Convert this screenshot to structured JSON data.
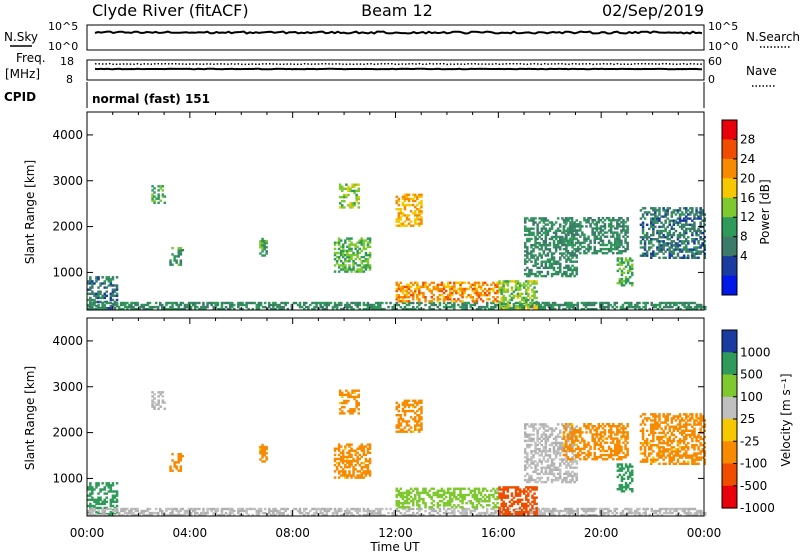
{
  "header": {
    "title": "Clyde River (fitACF)",
    "beam": "Beam 12",
    "date": "02/Sep/2019"
  },
  "strip": {
    "nsky_label": "N.Sky",
    "nsearch_label": "N.Search",
    "freq_label_1": "Freq.",
    "freq_label_2": "[MHz]",
    "nave_label": "Nave",
    "cpid_label": "CPID",
    "cpid_value": "normal (fast) 151",
    "left_ticks_top": [
      "10^5",
      "10^0"
    ],
    "right_ticks_top": [
      "10^5",
      "10^0"
    ],
    "left_ticks_freq": [
      "18",
      "8"
    ],
    "right_ticks_nave": [
      "60",
      "0"
    ]
  },
  "power_colorbar": {
    "label": "Power [dB]",
    "ticks": [
      "28",
      "24",
      "20",
      "16",
      "12",
      "8",
      "4"
    ],
    "colors": [
      "#e8000b",
      "#f04d00",
      "#f88a00",
      "#f5c800",
      "#7ec830",
      "#2f9a5a",
      "#3c7a6a",
      "#1a3ca0",
      "#0018e8"
    ]
  },
  "velocity_colorbar": {
    "label": "Velocity [m s⁻¹]",
    "ticks": [
      "1000",
      "500",
      "100",
      "25",
      "-25",
      "-100",
      "-500",
      "-1000"
    ],
    "colors": [
      "#1a3ca0",
      "#2f9a5a",
      "#7ec830",
      "#c0c0c0",
      "#f5c800",
      "#f88a00",
      "#f04d00",
      "#e8000b"
    ]
  },
  "colors": {
    "ground_scatter": "#b0b0b0"
  },
  "chart_data": {
    "type": "heatmap",
    "panels": [
      "power",
      "velocity"
    ],
    "ylabel": "Slant Range [km]",
    "xlabel": "Time UT",
    "x_ticks": [
      "00:00",
      "04:00",
      "08:00",
      "12:00",
      "16:00",
      "20:00",
      "00:00"
    ],
    "y_ticks": [
      1000,
      2000,
      3000,
      4000
    ],
    "ylim": [
      180,
      4500
    ],
    "xlim_hours": [
      0,
      24
    ],
    "nsky_trace_level": 0.7,
    "freq_trace_level": 0.55,
    "nave_trace_level": 0.8,
    "echo_regions": [
      {
        "t0": 0.0,
        "t1": 1.2,
        "r0": 200,
        "r1": 900,
        "power": 8,
        "velocity": 500
      },
      {
        "t0": 0.0,
        "t1": 24.0,
        "r0": 180,
        "r1": 330,
        "power": 10,
        "velocity": 25
      },
      {
        "t0": 2.5,
        "t1": 3.0,
        "r0": 2500,
        "r1": 2900,
        "power": 14,
        "velocity": 25
      },
      {
        "t0": 3.2,
        "t1": 3.7,
        "r0": 1150,
        "r1": 1550,
        "power": 12,
        "velocity": -100
      },
      {
        "t0": 6.7,
        "t1": 7.0,
        "r0": 1350,
        "r1": 1750,
        "power": 12,
        "velocity": -100
      },
      {
        "t0": 9.6,
        "t1": 11.0,
        "r0": 1000,
        "r1": 1750,
        "power": 14,
        "velocity": -100
      },
      {
        "t0": 9.8,
        "t1": 10.6,
        "r0": 2400,
        "r1": 2900,
        "power": 16,
        "velocity": -100
      },
      {
        "t0": 12.0,
        "t1": 13.0,
        "r0": 2000,
        "r1": 2700,
        "power": 22,
        "velocity": -100
      },
      {
        "t0": 12.0,
        "t1": 16.0,
        "r0": 350,
        "r1": 800,
        "power": 24,
        "velocity": 100
      },
      {
        "t0": 16.0,
        "t1": 17.5,
        "r0": 200,
        "r1": 800,
        "power": 16,
        "velocity": -500
      },
      {
        "t0": 17.0,
        "t1": 19.0,
        "r0": 900,
        "r1": 2200,
        "power": 10,
        "velocity": 25
      },
      {
        "t0": 18.5,
        "t1": 21.0,
        "r0": 1400,
        "r1": 2200,
        "power": 10,
        "velocity": -100
      },
      {
        "t0": 20.6,
        "t1": 21.2,
        "r0": 700,
        "r1": 1300,
        "power": 14,
        "velocity": 500
      },
      {
        "t0": 21.5,
        "t1": 24.0,
        "r0": 1300,
        "r1": 2400,
        "power": 8,
        "velocity": -100
      }
    ]
  }
}
